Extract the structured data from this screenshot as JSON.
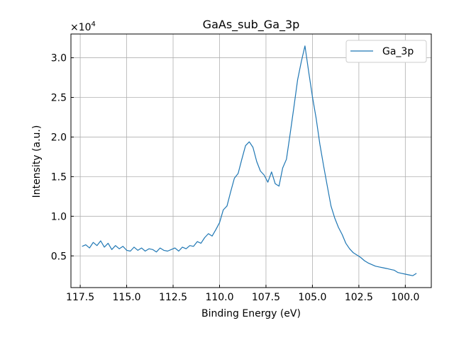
{
  "chart_data": {
    "type": "line",
    "title": "GaAs_sub_Ga_3p",
    "xlabel": "Binding Energy (eV)",
    "ylabel": "Intensity (a.u.)",
    "y_multiplier_label": "×10",
    "y_multiplier_exponent": "4",
    "xlim": [
      118.0,
      98.6
    ],
    "ylim": [
      1000,
      33000
    ],
    "x_axis_reversed": true,
    "x_ticks": [
      117.5,
      115.0,
      112.5,
      110.0,
      107.5,
      105.0,
      102.5,
      100.0
    ],
    "x_tick_labels": [
      "117.5",
      "115.0",
      "112.5",
      "110.0",
      "107.5",
      "105.0",
      "102.5",
      "100.0"
    ],
    "y_ticks": [
      5000,
      10000,
      15000,
      20000,
      25000,
      30000
    ],
    "y_tick_labels": [
      "0.5",
      "1.0",
      "1.5",
      "2.0",
      "2.5",
      "3.0"
    ],
    "grid": true,
    "legend_position": "top-right",
    "series": [
      {
        "name": "Ga_3p",
        "color": "#1f77b4",
        "x": [
          117.4,
          117.2,
          117.0,
          116.8,
          116.6,
          116.4,
          116.2,
          116.0,
          115.8,
          115.6,
          115.4,
          115.2,
          115.0,
          114.8,
          114.6,
          114.4,
          114.2,
          114.0,
          113.8,
          113.6,
          113.4,
          113.2,
          113.0,
          112.8,
          112.6,
          112.4,
          112.2,
          112.0,
          111.8,
          111.6,
          111.4,
          111.2,
          111.0,
          110.8,
          110.6,
          110.4,
          110.2,
          110.0,
          109.8,
          109.6,
          109.4,
          109.2,
          109.0,
          108.8,
          108.6,
          108.4,
          108.2,
          108.0,
          107.8,
          107.6,
          107.4,
          107.2,
          107.0,
          106.8,
          106.6,
          106.4,
          106.2,
          106.0,
          105.8,
          105.6,
          105.4,
          105.2,
          105.0,
          104.8,
          104.6,
          104.4,
          104.2,
          104.0,
          103.8,
          103.6,
          103.4,
          103.2,
          103.0,
          102.8,
          102.6,
          102.4,
          102.2,
          102.0,
          101.8,
          101.6,
          101.4,
          101.2,
          101.0,
          100.8,
          100.6,
          100.4,
          100.2,
          100.0,
          99.8,
          99.6,
          99.4
        ],
        "y": [
          6200,
          6400,
          6000,
          6700,
          6300,
          6900,
          6100,
          6600,
          5800,
          6300,
          5900,
          6200,
          5700,
          5600,
          6100,
          5700,
          6000,
          5600,
          5900,
          5800,
          5500,
          6000,
          5700,
          5600,
          5800,
          6000,
          5600,
          6100,
          5900,
          6300,
          6200,
          6800,
          6600,
          7300,
          7800,
          7500,
          8300,
          9200,
          10800,
          11300,
          13100,
          14800,
          15400,
          17200,
          18900,
          19400,
          18700,
          16900,
          15700,
          15200,
          14300,
          15600,
          14100,
          13800,
          16100,
          17200,
          20400,
          23700,
          27200,
          29500,
          31500,
          28200,
          25100,
          22400,
          19100,
          16400,
          13800,
          11300,
          9800,
          8600,
          7700,
          6600,
          5900,
          5400,
          5100,
          4800,
          4400,
          4100,
          3900,
          3700,
          3600,
          3500,
          3400,
          3300,
          3200,
          2900,
          2800,
          2700,
          2600,
          2500,
          2800
        ]
      }
    ]
  }
}
